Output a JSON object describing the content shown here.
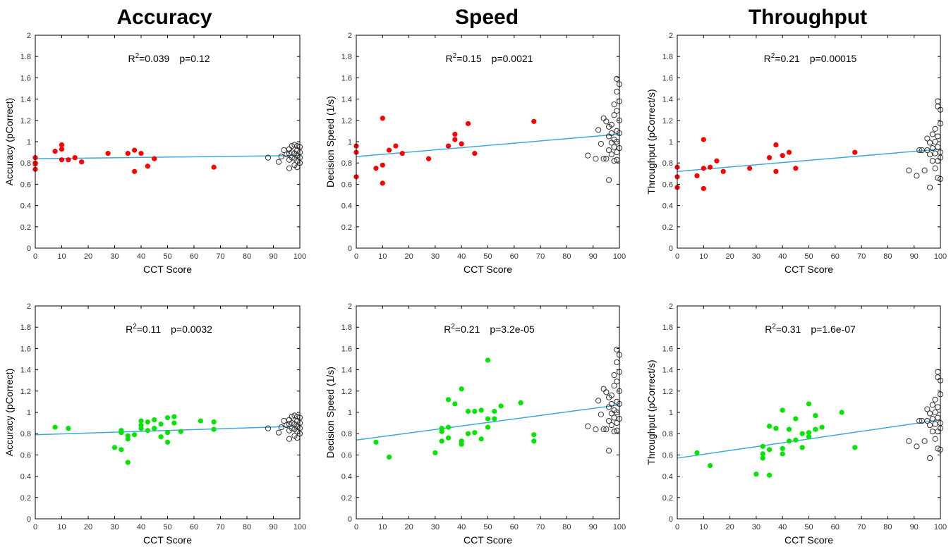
{
  "figure": {
    "column_titles": [
      "Accuracy",
      "Speed",
      "Throughput"
    ],
    "xlabel": "CCT Score",
    "colors": {
      "red": "#ff0000",
      "green": "#00e600",
      "fit_line": "#3ca9dc",
      "hollow": "#333333"
    }
  },
  "chart_data": [
    {
      "type": "scatter",
      "row": 0,
      "col": 0,
      "xlabel": "CCT Score",
      "ylabel": "Accuracy (pCorrect)",
      "xlim": [
        0,
        100
      ],
      "ylim": [
        0,
        2
      ],
      "xticks": [
        0,
        10,
        20,
        30,
        40,
        50,
        60,
        70,
        80,
        90,
        100
      ],
      "yticks": [
        0,
        0.2,
        0.4,
        0.6,
        0.8,
        1,
        1.2,
        1.4,
        1.6,
        1.8,
        2
      ],
      "stat": {
        "r2": "0.039",
        "p": "0.12"
      },
      "fit": {
        "intercept": 0.84,
        "slope": 0.0003
      },
      "series": [
        {
          "name": "",
          "color": "#ff0000",
          "filled": true,
          "x": [
            0,
            0,
            0,
            0,
            7.5,
            10,
            10,
            10,
            12.5,
            15,
            17.5,
            27.5,
            35,
            37.5,
            37.5,
            40,
            42.5,
            45,
            67.5
          ],
          "y": [
            0.85,
            0.8,
            0.74,
            0.79,
            0.91,
            0.97,
            0.93,
            0.83,
            0.83,
            0.85,
            0.81,
            0.89,
            0.89,
            0.92,
            0.72,
            0.89,
            0.77,
            0.84,
            0.76
          ]
        },
        {
          "name": "",
          "color": "#333333",
          "filled": false,
          "x": [
            88,
            92,
            93,
            94,
            95,
            96,
            96,
            96,
            96,
            97,
            97,
            97,
            98,
            98,
            98,
            98,
            99,
            99,
            99,
            99,
            99,
            100,
            100,
            100,
            100
          ],
          "y": [
            0.85,
            0.81,
            0.86,
            0.92,
            0.88,
            0.75,
            0.83,
            0.89,
            0.93,
            0.85,
            0.9,
            0.96,
            0.78,
            0.84,
            0.89,
            0.97,
            0.76,
            0.82,
            0.87,
            0.92,
            0.96,
            0.8,
            0.85,
            0.9,
            0.95
          ]
        }
      ]
    },
    {
      "type": "scatter",
      "row": 0,
      "col": 1,
      "xlabel": "CCT Score",
      "ylabel": "Decision Speed (1/s)",
      "xlim": [
        0,
        100
      ],
      "ylim": [
        0,
        2
      ],
      "xticks": [
        0,
        10,
        20,
        30,
        40,
        50,
        60,
        70,
        80,
        90,
        100
      ],
      "yticks": [
        0,
        0.2,
        0.4,
        0.6,
        0.8,
        1,
        1.2,
        1.4,
        1.6,
        1.8,
        2
      ],
      "stat": {
        "r2": "0.15",
        "p": "0.0021"
      },
      "fit": {
        "intercept": 0.86,
        "slope": 0.0021
      },
      "series": [
        {
          "name": "",
          "color": "#ff0000",
          "filled": true,
          "x": [
            0,
            0,
            0,
            7.5,
            10,
            10,
            10,
            12.5,
            15,
            17.5,
            27.5,
            35,
            37.5,
            37.5,
            40,
            42.5,
            45,
            67.5
          ],
          "y": [
            0.96,
            0.9,
            0.67,
            0.75,
            1.22,
            0.78,
            0.61,
            0.92,
            0.96,
            0.89,
            0.84,
            0.96,
            1.07,
            1.02,
            0.98,
            1.17,
            0.89,
            1.19
          ]
        },
        {
          "name": "",
          "color": "#333333",
          "filled": false,
          "x": [
            88,
            91,
            92,
            93,
            94,
            94,
            95,
            95,
            96,
            96,
            96,
            96,
            97,
            97,
            97,
            97,
            98,
            98,
            98,
            98,
            98,
            99,
            99,
            99,
            99,
            99,
            99,
            99,
            100,
            100,
            100,
            100,
            100
          ],
          "y": [
            0.87,
            0.84,
            1.11,
            0.98,
            1.22,
            0.84,
            1.19,
            0.84,
            1.05,
            0.64,
            0.92,
            1.14,
            1.08,
            0.99,
            1.16,
            0.88,
            1.02,
            1.25,
            0.95,
            1.35,
            0.82,
            1.59,
            1.1,
            1.29,
            0.9,
            1.47,
            1.0,
            0.83,
            1.54,
            1.38,
            1.2,
            0.94,
            1.08
          ]
        }
      ]
    },
    {
      "type": "scatter",
      "row": 0,
      "col": 2,
      "xlabel": "CCT Score",
      "ylabel": "Throughput (pCorrect/s)",
      "xlim": [
        0,
        100
      ],
      "ylim": [
        0,
        2
      ],
      "xticks": [
        0,
        10,
        20,
        30,
        40,
        50,
        60,
        70,
        80,
        90,
        100
      ],
      "yticks": [
        0,
        0.2,
        0.4,
        0.6,
        0.8,
        1,
        1.2,
        1.4,
        1.6,
        1.8,
        2
      ],
      "stat": {
        "r2": "0.21",
        "p": "0.00015"
      },
      "fit": {
        "intercept": 0.72,
        "slope": 0.0021
      },
      "series": [
        {
          "name": "",
          "color": "#ff0000",
          "filled": true,
          "x": [
            0,
            0,
            0,
            7.5,
            10,
            10,
            10,
            12.5,
            15,
            17.5,
            27.5,
            35,
            37.5,
            37.5,
            40,
            42.5,
            45,
            67.5
          ],
          "y": [
            0.76,
            0.67,
            0.57,
            0.68,
            1.02,
            0.75,
            0.56,
            0.76,
            0.82,
            0.72,
            0.75,
            0.85,
            0.97,
            0.72,
            0.87,
            0.9,
            0.75,
            0.9
          ]
        },
        {
          "name": "",
          "color": "#333333",
          "filled": false,
          "x": [
            88,
            91,
            92,
            93,
            94,
            95,
            95,
            96,
            96,
            96,
            97,
            97,
            97,
            98,
            98,
            98,
            98,
            99,
            99,
            99,
            99,
            99,
            99,
            100,
            100,
            100,
            100,
            100
          ],
          "y": [
            0.73,
            0.68,
            0.92,
            0.92,
            0.73,
            1.03,
            0.92,
            0.57,
            0.88,
            0.99,
            0.82,
            0.94,
            1.07,
            1.0,
            0.89,
            0.75,
            1.12,
            1.38,
            0.66,
            1.33,
            0.95,
            0.82,
            1.05,
            1.3,
            0.65,
            0.9,
            0.85,
            1.17
          ]
        }
      ]
    },
    {
      "type": "scatter",
      "row": 1,
      "col": 0,
      "xlabel": "CCT Score",
      "ylabel": "Accuracy (pCorrect)",
      "xlim": [
        0,
        100
      ],
      "ylim": [
        0,
        2
      ],
      "xticks": [
        0,
        10,
        20,
        30,
        40,
        50,
        60,
        70,
        80,
        90,
        100
      ],
      "yticks": [
        0,
        0.2,
        0.4,
        0.6,
        0.8,
        1,
        1.2,
        1.4,
        1.6,
        1.8,
        2
      ],
      "stat": {
        "r2": "0.11",
        "p": "0.0032"
      },
      "fit": {
        "intercept": 0.79,
        "slope": 0.0008
      },
      "series": [
        {
          "name": "",
          "color": "#00e600",
          "filled": true,
          "x": [
            7.5,
            12.5,
            30,
            32.5,
            32.5,
            32.5,
            35,
            35,
            35,
            37.5,
            40,
            40,
            40,
            42.5,
            42.5,
            45,
            45,
            47.5,
            47.5,
            50,
            50,
            50,
            52.5,
            52.5,
            55,
            62.5,
            67.5,
            67.5
          ],
          "y": [
            0.86,
            0.85,
            0.67,
            0.83,
            0.81,
            0.65,
            0.78,
            0.75,
            0.53,
            0.79,
            0.92,
            0.88,
            0.85,
            0.91,
            0.83,
            0.93,
            0.85,
            0.89,
            0.77,
            0.95,
            0.81,
            0.72,
            0.96,
            0.9,
            0.82,
            0.92,
            0.91,
            0.84
          ]
        },
        {
          "name": "",
          "color": "#333333",
          "filled": false,
          "x": [
            88,
            92,
            93,
            94,
            95,
            96,
            96,
            96,
            96,
            97,
            97,
            97,
            98,
            98,
            98,
            98,
            99,
            99,
            99,
            99,
            99,
            100,
            100,
            100,
            100
          ],
          "y": [
            0.85,
            0.81,
            0.86,
            0.92,
            0.88,
            0.75,
            0.83,
            0.89,
            0.93,
            0.85,
            0.9,
            0.96,
            0.78,
            0.84,
            0.89,
            0.97,
            0.76,
            0.82,
            0.87,
            0.92,
            0.96,
            0.8,
            0.85,
            0.9,
            0.95
          ]
        }
      ]
    },
    {
      "type": "scatter",
      "row": 1,
      "col": 1,
      "xlabel": "CCT Score",
      "ylabel": "Decision Speed (1/s)",
      "xlim": [
        0,
        100
      ],
      "ylim": [
        0,
        2
      ],
      "xticks": [
        0,
        10,
        20,
        30,
        40,
        50,
        60,
        70,
        80,
        90,
        100
      ],
      "yticks": [
        0,
        0.2,
        0.4,
        0.6,
        0.8,
        1,
        1.2,
        1.4,
        1.6,
        1.8,
        2
      ],
      "stat": {
        "r2": "0.21",
        "p": "3.2e-05"
      },
      "fit": {
        "intercept": 0.74,
        "slope": 0.0033
      },
      "series": [
        {
          "name": "",
          "color": "#00e600",
          "filled": true,
          "x": [
            7.5,
            12.5,
            30,
            32.5,
            32.5,
            32.5,
            35,
            35,
            35,
            37.5,
            40,
            40,
            40,
            42.5,
            42.5,
            45,
            45,
            47.5,
            47.5,
            50,
            50,
            50,
            52.5,
            52.5,
            55,
            62.5,
            67.5,
            67.5
          ],
          "y": [
            0.72,
            0.58,
            0.62,
            0.85,
            0.82,
            0.73,
            1.12,
            0.86,
            0.76,
            1.08,
            1.22,
            0.73,
            0.7,
            1.01,
            0.8,
            1.01,
            0.81,
            1.02,
            0.75,
            1.49,
            0.94,
            0.86,
            1.01,
            0.94,
            1.06,
            1.09,
            0.79,
            0.73
          ]
        },
        {
          "name": "",
          "color": "#333333",
          "filled": false,
          "x": [
            88,
            91,
            92,
            93,
            94,
            94,
            95,
            95,
            96,
            96,
            96,
            96,
            97,
            97,
            97,
            97,
            98,
            98,
            98,
            98,
            98,
            99,
            99,
            99,
            99,
            99,
            99,
            99,
            100,
            100,
            100,
            100,
            100
          ],
          "y": [
            0.87,
            0.84,
            1.11,
            0.98,
            1.22,
            0.84,
            1.19,
            0.84,
            1.05,
            0.64,
            0.92,
            1.14,
            1.08,
            0.99,
            1.16,
            0.88,
            1.02,
            1.25,
            0.95,
            1.35,
            0.82,
            1.59,
            1.1,
            1.29,
            0.9,
            1.47,
            1.0,
            0.83,
            1.54,
            1.38,
            1.2,
            0.94,
            1.08
          ]
        }
      ]
    },
    {
      "type": "scatter",
      "row": 1,
      "col": 2,
      "xlabel": "CCT Score",
      "ylabel": "Throughput (pCorrect/s)",
      "xlim": [
        0,
        100
      ],
      "ylim": [
        0,
        2
      ],
      "xticks": [
        0,
        10,
        20,
        30,
        40,
        50,
        60,
        70,
        80,
        90,
        100
      ],
      "yticks": [
        0,
        0.2,
        0.4,
        0.6,
        0.8,
        1,
        1.2,
        1.4,
        1.6,
        1.8,
        2
      ],
      "stat": {
        "r2": "0.31",
        "p": "1.6e-07"
      },
      "fit": {
        "intercept": 0.57,
        "slope": 0.0036
      },
      "series": [
        {
          "name": "",
          "color": "#00e600",
          "filled": true,
          "x": [
            7.5,
            12.5,
            30,
            32.5,
            32.5,
            32.5,
            35,
            35,
            35,
            37.5,
            40,
            40,
            40,
            42.5,
            42.5,
            45,
            45,
            47.5,
            47.5,
            50,
            50,
            50,
            52.5,
            52.5,
            55,
            62.5,
            67.5
          ],
          "y": [
            0.62,
            0.5,
            0.42,
            0.68,
            0.61,
            0.57,
            0.87,
            0.65,
            0.41,
            0.85,
            1.02,
            0.66,
            0.61,
            0.84,
            0.73,
            0.94,
            0.74,
            0.8,
            0.67,
            1.08,
            0.81,
            0.77,
            0.97,
            0.84,
            0.86,
            1.0,
            0.67
          ]
        },
        {
          "name": "",
          "color": "#333333",
          "filled": false,
          "x": [
            88,
            91,
            92,
            93,
            94,
            95,
            95,
            96,
            96,
            96,
            97,
            97,
            97,
            98,
            98,
            98,
            98,
            99,
            99,
            99,
            99,
            99,
            99,
            100,
            100,
            100,
            100,
            100
          ],
          "y": [
            0.73,
            0.68,
            0.92,
            0.92,
            0.73,
            1.03,
            0.92,
            0.57,
            0.88,
            0.99,
            0.82,
            0.94,
            1.07,
            1.0,
            0.89,
            0.75,
            1.12,
            1.38,
            0.66,
            1.33,
            0.95,
            0.82,
            1.05,
            1.3,
            0.65,
            0.9,
            0.85,
            1.17
          ]
        }
      ]
    }
  ]
}
